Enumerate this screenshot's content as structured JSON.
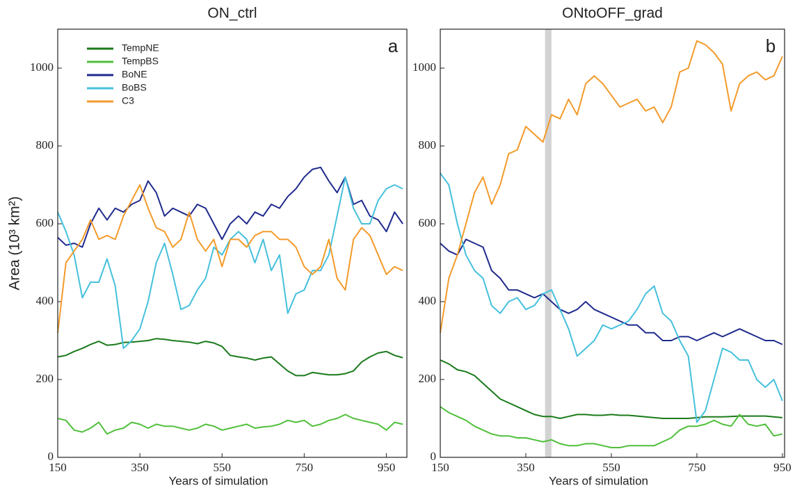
{
  "chart_data": [
    {
      "type": "line",
      "title": "ON_ctrl",
      "panel_label": "a",
      "x_label": "Years of simulation",
      "y_label": "Area (10³ km²)",
      "xlim": [
        150,
        1000
      ],
      "ylim": [
        0,
        1100
      ],
      "xticks": [
        150,
        350,
        550,
        750,
        950
      ],
      "yticks": [
        0,
        200,
        400,
        600,
        800,
        1000
      ],
      "legend": true,
      "legend_position": "upper left",
      "x": [
        150,
        170,
        190,
        210,
        230,
        250,
        270,
        290,
        310,
        330,
        350,
        370,
        390,
        410,
        430,
        450,
        470,
        490,
        510,
        530,
        550,
        570,
        590,
        610,
        630,
        650,
        670,
        690,
        710,
        730,
        750,
        770,
        790,
        810,
        830,
        850,
        870,
        890,
        910,
        930,
        950,
        970,
        990
      ],
      "series": [
        {
          "name": "TempNE",
          "color": "#1a7a1a",
          "values": [
            258,
            262,
            272,
            280,
            290,
            298,
            288,
            290,
            295,
            296,
            298,
            300,
            305,
            303,
            300,
            298,
            296,
            292,
            298,
            294,
            285,
            262,
            258,
            255,
            250,
            255,
            258,
            240,
            222,
            210,
            210,
            218,
            215,
            212,
            212,
            215,
            222,
            245,
            258,
            268,
            272,
            262,
            256
          ]
        },
        {
          "name": "TempBS",
          "color": "#4fbf3a",
          "values": [
            100,
            95,
            70,
            65,
            75,
            90,
            60,
            70,
            75,
            90,
            85,
            75,
            85,
            80,
            80,
            75,
            70,
            75,
            85,
            80,
            70,
            75,
            80,
            85,
            75,
            78,
            80,
            85,
            95,
            90,
            95,
            80,
            85,
            95,
            100,
            110,
            100,
            95,
            90,
            85,
            70,
            90,
            85
          ]
        },
        {
          "name": "BoNE",
          "color": "#1f2a8c",
          "values": [
            565,
            545,
            550,
            540,
            600,
            640,
            610,
            640,
            630,
            650,
            660,
            710,
            680,
            620,
            640,
            630,
            620,
            650,
            640,
            600,
            560,
            600,
            620,
            600,
            630,
            620,
            650,
            640,
            670,
            690,
            720,
            740,
            745,
            710,
            680,
            720,
            650,
            660,
            620,
            610,
            580,
            630,
            600
          ]
        },
        {
          "name": "BoBS",
          "color": "#45c0dc",
          "values": [
            630,
            580,
            520,
            410,
            450,
            450,
            510,
            440,
            280,
            300,
            330,
            400,
            500,
            550,
            470,
            380,
            390,
            430,
            460,
            540,
            520,
            560,
            580,
            560,
            500,
            560,
            480,
            520,
            370,
            420,
            430,
            480,
            480,
            520,
            620,
            720,
            640,
            600,
            600,
            660,
            690,
            700,
            690
          ]
        },
        {
          "name": "C3",
          "color": "#f39a2a",
          "values": [
            320,
            500,
            530,
            560,
            610,
            560,
            570,
            560,
            620,
            660,
            700,
            640,
            590,
            580,
            540,
            560,
            630,
            560,
            530,
            560,
            490,
            560,
            560,
            540,
            570,
            580,
            580,
            560,
            560,
            540,
            490,
            470,
            490,
            560,
            460,
            430,
            560,
            590,
            570,
            520,
            470,
            490,
            480
          ]
        }
      ]
    },
    {
      "type": "line",
      "title": "ONtoOFF_grad",
      "panel_label": "b",
      "x_label": "Years of simulation",
      "xlim": [
        150,
        955
      ],
      "ylim": [
        0,
        1100
      ],
      "xticks": [
        150,
        350,
        550,
        750,
        950
      ],
      "yticks": [
        0,
        200,
        400,
        600,
        800,
        1000
      ],
      "legend": false,
      "shaded_region": [
        395,
        410
      ],
      "shaded_color": "#d3d3d3",
      "x": [
        150,
        170,
        190,
        210,
        230,
        250,
        270,
        290,
        310,
        330,
        350,
        370,
        390,
        410,
        430,
        450,
        470,
        490,
        510,
        530,
        550,
        570,
        590,
        610,
        630,
        650,
        670,
        690,
        710,
        730,
        750,
        770,
        790,
        810,
        830,
        850,
        870,
        890,
        910,
        930,
        950
      ],
      "series": [
        {
          "name": "TempNE",
          "color": "#1a7a1a",
          "values": [
            250,
            240,
            225,
            220,
            210,
            190,
            170,
            150,
            140,
            130,
            120,
            110,
            105,
            105,
            100,
            105,
            110,
            110,
            108,
            108,
            110,
            108,
            108,
            106,
            104,
            102,
            100,
            100,
            100,
            100,
            102,
            104,
            104,
            104,
            105,
            106,
            106,
            106,
            106,
            104,
            102
          ]
        },
        {
          "name": "TempBS",
          "color": "#4fbf3a",
          "values": [
            130,
            115,
            105,
            95,
            80,
            70,
            60,
            55,
            55,
            50,
            50,
            45,
            40,
            45,
            35,
            30,
            30,
            35,
            35,
            30,
            25,
            25,
            30,
            30,
            30,
            30,
            40,
            50,
            70,
            80,
            80,
            85,
            95,
            85,
            80,
            110,
            85,
            80,
            85,
            55,
            60
          ]
        },
        {
          "name": "BoNE",
          "color": "#1f2a8c",
          "values": [
            550,
            530,
            520,
            560,
            550,
            540,
            480,
            460,
            430,
            430,
            420,
            410,
            420,
            400,
            380,
            370,
            380,
            400,
            380,
            370,
            360,
            350,
            340,
            340,
            320,
            320,
            300,
            300,
            310,
            310,
            300,
            310,
            320,
            310,
            320,
            330,
            320,
            310,
            300,
            300,
            290
          ]
        },
        {
          "name": "BoBS",
          "color": "#45c0dc",
          "values": [
            730,
            700,
            600,
            520,
            480,
            460,
            390,
            370,
            400,
            410,
            380,
            390,
            420,
            430,
            380,
            330,
            260,
            280,
            300,
            340,
            330,
            340,
            350,
            380,
            420,
            440,
            370,
            350,
            300,
            260,
            90,
            120,
            200,
            280,
            270,
            250,
            250,
            200,
            180,
            200,
            145
          ]
        },
        {
          "name": "C3",
          "color": "#f39a2a",
          "values": [
            320,
            460,
            520,
            600,
            680,
            720,
            650,
            700,
            780,
            790,
            850,
            830,
            810,
            880,
            870,
            920,
            880,
            960,
            980,
            960,
            930,
            900,
            910,
            920,
            890,
            900,
            860,
            900,
            990,
            1000,
            1070,
            1060,
            1040,
            1010,
            890,
            960,
            980,
            990,
            970,
            980,
            1030
          ]
        }
      ]
    }
  ]
}
